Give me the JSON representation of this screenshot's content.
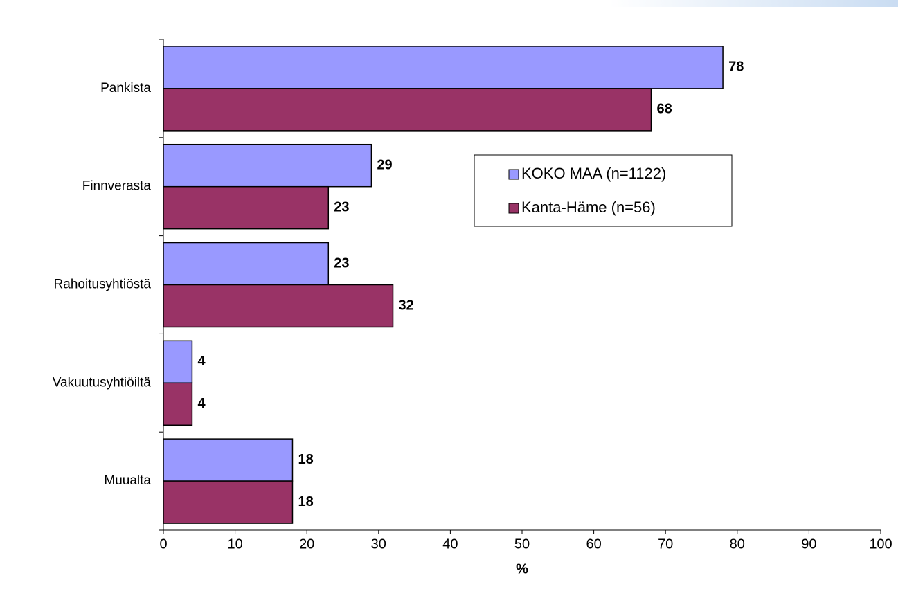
{
  "chart_data": {
    "type": "barh",
    "categories": [
      "Pankista",
      "Finnverasta",
      "Rahoitusyhtiöstä",
      "Vakuutusyhtiöiltä",
      "Muualta"
    ],
    "series": [
      {
        "name": "KOKO MAA (n=1122)",
        "color": "#9999ff",
        "values": [
          78,
          29,
          23,
          4,
          18
        ]
      },
      {
        "name": "Kanta-Häme (n=56)",
        "color": "#993366",
        "values": [
          68,
          23,
          32,
          4,
          18
        ]
      }
    ],
    "xlim": [
      0,
      100
    ],
    "xticks": [
      0,
      10,
      20,
      30,
      40,
      50,
      60,
      70,
      80,
      90,
      100
    ],
    "xlabel": "%",
    "legend_position": "upper-right"
  }
}
